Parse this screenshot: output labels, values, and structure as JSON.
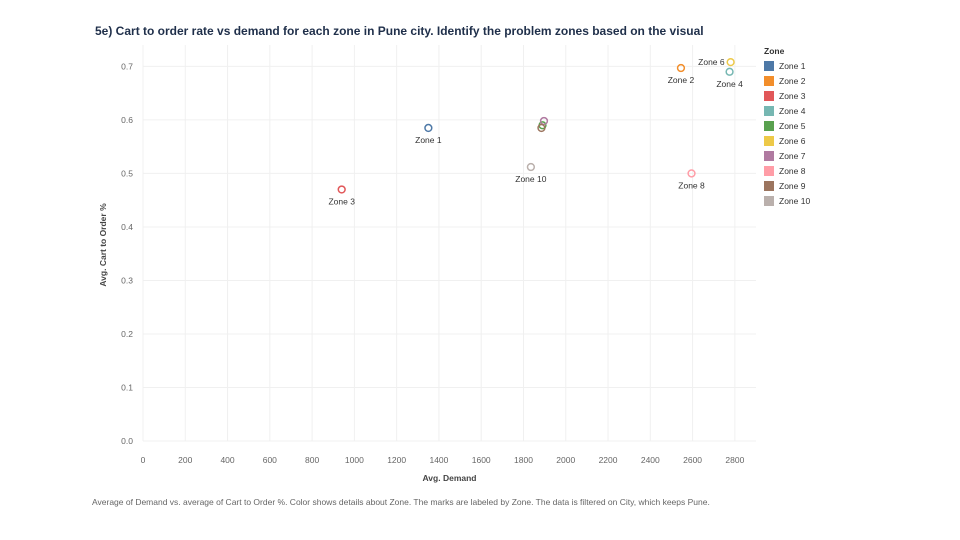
{
  "chart_data": {
    "type": "scatter",
    "title": "5e) Cart to order rate vs demand for each zone in Pune city. Identify the problem zones based on the visual",
    "xlabel": "Avg. Demand",
    "ylabel": "Avg. Cart to Order %",
    "x_ticks": [
      "0",
      "200",
      "400",
      "600",
      "800",
      "1000",
      "1200",
      "1400",
      "1600",
      "1800",
      "2000",
      "2200",
      "2400",
      "2600",
      "2800"
    ],
    "y_ticks": [
      "0.0",
      "0.1",
      "0.2",
      "0.3",
      "0.4",
      "0.5",
      "0.6",
      "0.7"
    ],
    "xlim": [
      0,
      2900
    ],
    "ylim": [
      0,
      0.74
    ],
    "grid": true,
    "legend_title": "Zone",
    "legend_position": "right",
    "points": [
      {
        "zone": "Zone 1",
        "x": 1350,
        "y": 0.585,
        "color": "#4e79a7",
        "label": "Zone 1",
        "label_pos": "below"
      },
      {
        "zone": "Zone 2",
        "x": 2545,
        "y": 0.697,
        "color": "#f28e2b",
        "label": "Zone 2",
        "label_pos": "below"
      },
      {
        "zone": "Zone 3",
        "x": 940,
        "y": 0.47,
        "color": "#e15759",
        "label": "Zone 3",
        "label_pos": "below"
      },
      {
        "zone": "Zone 4",
        "x": 2775,
        "y": 0.69,
        "color": "#76b7b2",
        "label": "Zone 4",
        "label_pos": "below"
      },
      {
        "zone": "Zone 5",
        "x": 1890,
        "y": 0.59,
        "color": "#59a14f",
        "label": "",
        "label_pos": "none"
      },
      {
        "zone": "Zone 6",
        "x": 2780,
        "y": 0.708,
        "color": "#edc948",
        "label": "Zone 6",
        "label_pos": "left"
      },
      {
        "zone": "Zone 7",
        "x": 1897,
        "y": 0.598,
        "color": "#b07aa1",
        "label": "",
        "label_pos": "none"
      },
      {
        "zone": "Zone 8",
        "x": 2595,
        "y": 0.5,
        "color": "#ff9da7",
        "label": "Zone 8",
        "label_pos": "below"
      },
      {
        "zone": "Zone 9",
        "x": 1885,
        "y": 0.585,
        "color": "#9c755f",
        "label": "",
        "label_pos": "none"
      },
      {
        "zone": "Zone 10",
        "x": 1835,
        "y": 0.512,
        "color": "#bab0ac",
        "label": "Zone 10",
        "label_pos": "below"
      }
    ],
    "legend": [
      {
        "label": "Zone 1",
        "color": "#4e79a7"
      },
      {
        "label": "Zone 2",
        "color": "#f28e2b"
      },
      {
        "label": "Zone 3",
        "color": "#e15759"
      },
      {
        "label": "Zone 4",
        "color": "#76b7b2"
      },
      {
        "label": "Zone 5",
        "color": "#59a14f"
      },
      {
        "label": "Zone 6",
        "color": "#edc948"
      },
      {
        "label": "Zone 7",
        "color": "#b07aa1"
      },
      {
        "label": "Zone 8",
        "color": "#ff9da7"
      },
      {
        "label": "Zone 9",
        "color": "#9c755f"
      },
      {
        "label": "Zone 10",
        "color": "#bab0ac"
      }
    ],
    "caption": "Average of Demand vs. average of Cart to Order %.  Color shows details about Zone.  The marks are labeled by Zone. The data is filtered on City, which keeps Pune."
  }
}
